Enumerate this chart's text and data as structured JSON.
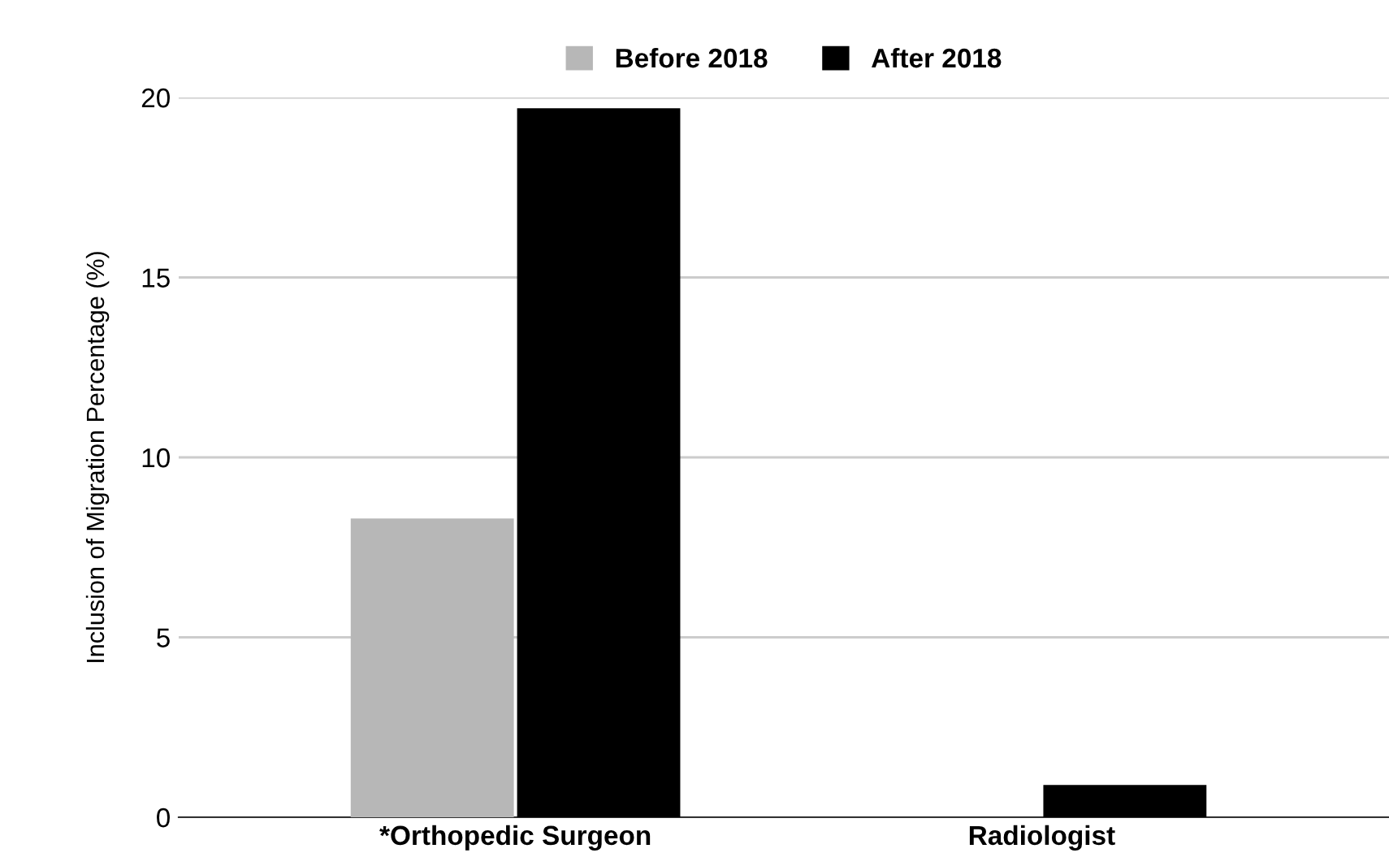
{
  "chart_data": {
    "type": "bar",
    "ylabel": "Inclusion of Migration Percentage (%)",
    "categories": [
      "*Orthopedic Surgeon",
      "Radiologist"
    ],
    "series": [
      {
        "name": "Before 2018",
        "color": "#b7b7b7",
        "values": [
          8.3,
          0
        ]
      },
      {
        "name": "After 2018",
        "color": "#000000",
        "values": [
          19.7,
          0.9
        ]
      }
    ],
    "ylim": [
      0,
      20
    ],
    "yticks": [
      0,
      5,
      10,
      15,
      20
    ],
    "grid": "y",
    "legend": "top"
  }
}
